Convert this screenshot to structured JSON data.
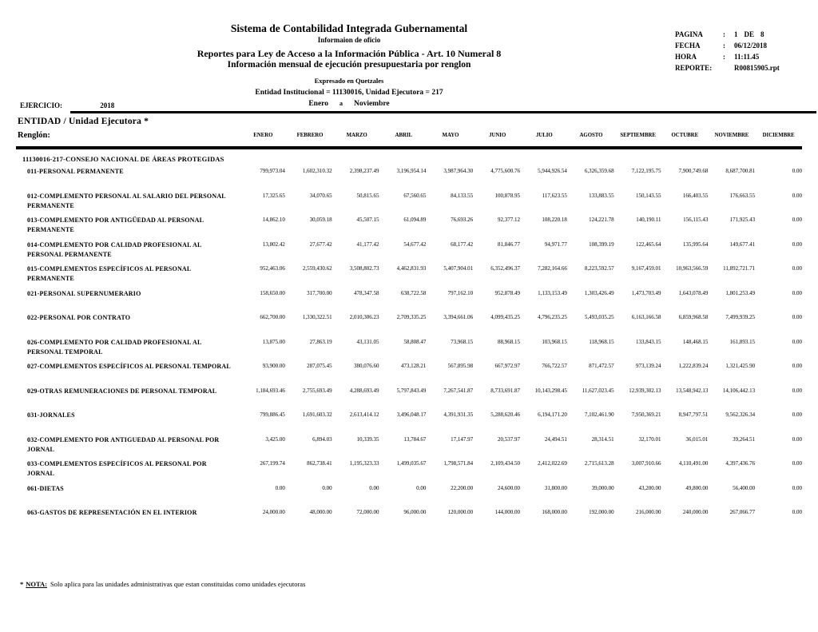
{
  "header": {
    "title": "Sistema de Contabilidad Integrada Gubernamental",
    "subtitle1": "Informaion de oficio",
    "subtitle2": "Reportes para Ley de Acceso a la Información Pública - Art. 10 Numeral 8",
    "subtitle3": "Información mensual de ejecución presupuestaria por renglon",
    "currency_note": "Expresado en Quetzales",
    "entity_line": "Entidad Institucional = 11130016, Unidad Ejecutora = 217",
    "period_from": "Enero",
    "period_sep": "a",
    "period_to": "Noviembre"
  },
  "meta": {
    "pagina_label": "PAGINA",
    "colon": ":",
    "pagina_value": "1",
    "de_label": "DE",
    "pagina_total": "8",
    "fecha_label": "FECHA",
    "fecha_value": "06/12/2018",
    "hora_label": "HORA",
    "hora_value": "11:11.45",
    "reporte_label": "REPORTE:",
    "reporte_value": "R00815905.rpt"
  },
  "filters": {
    "ejercicio_label": "EJERCICIO:",
    "ejercicio_value": "2018",
    "entidad_label": "ENTIDAD  / Unidad Ejecutora *",
    "renglon_label": "Renglón:"
  },
  "table": {
    "months": [
      "ENERO",
      "FEBRERO",
      "MARZO",
      "ABRIL",
      "MAYO",
      "JUNIO",
      "JULIO",
      "AGOSTO",
      "SEPTIEMBRE",
      "OCTUBRE",
      "NOVIEMBRE",
      "DICIEMBRE"
    ],
    "group_title": "11130016-217-CONSEJO NACIONAL DE ÁREAS PROTEGIDAS",
    "rows": [
      {
        "label": "011-PERSONAL PERMANENTE",
        "values": [
          "799,973.04",
          "1,602,310.32",
          "2,398,237.49",
          "3,196,954.14",
          "3,987,964.30",
          "4,775,600.76",
          "5,944,926.54",
          "6,326,359.68",
          "7,122,195.75",
          "7,900,749.68",
          "8,687,700.81",
          "0.00"
        ]
      },
      {
        "label": "012-COMPLEMENTO PERSONAL AL SALARIO DEL PERSONAL PERMANENTE",
        "values": [
          "17,325.65",
          "34,070.65",
          "50,815.65",
          "67,560.65",
          "84,133.55",
          "100,878.95",
          "117,623.55",
          "133,883.55",
          "150,143.55",
          "166,403.55",
          "176,663.55",
          "0.00"
        ]
      },
      {
        "label": "013-COMPLEMENTO POR ANTIGÜEDAD AL PERSONAL PERMANENTE",
        "values": [
          "14,862.10",
          "30,059.18",
          "45,507.15",
          "61,094.89",
          "76,693.26",
          "92,377.12",
          "108,220.18",
          "124,221.78",
          "140,190.11",
          "156,115.43",
          "171,925.43",
          "0.00"
        ]
      },
      {
        "label": "014-COMPLEMENTO POR CALIDAD PROFESIONAL AL PERSONAL PERMANENTE",
        "values": [
          "13,802.42",
          "27,677.42",
          "41,177.42",
          "54,677.42",
          "68,177.42",
          "81,846.77",
          "94,971.77",
          "108,399.19",
          "122,465.64",
          "135,995.64",
          "149,677.41",
          "0.00"
        ]
      },
      {
        "label": "015-COMPLEMENTOS ESPECÍFICOS AL PERSONAL PERMANENTE",
        "values": [
          "952,463.06",
          "2,559,430.62",
          "3,508,802.73",
          "4,462,831.93",
          "5,407,904.01",
          "6,352,496.37",
          "7,282,164.66",
          "8,223,592.57",
          "9,167,459.01",
          "10,963,566.59",
          "11,892,721.71",
          "0.00"
        ]
      },
      {
        "label": "021-PERSONAL SUPERNUMERARIO",
        "values": [
          "158,650.00",
          "317,700.00",
          "478,347.58",
          "638,722.58",
          "797,162.10",
          "952,878.49",
          "1,133,153.49",
          "1,303,426.49",
          "1,473,703.49",
          "1,643,078.49",
          "1,801,253.49",
          "0.00"
        ]
      },
      {
        "label": "022-PERSONAL POR CONTRATO",
        "values": [
          "662,700.00",
          "1,330,322.51",
          "2,010,306.23",
          "2,709,335.25",
          "3,394,661.06",
          "4,099,435.25",
          "4,796,235.25",
          "5,493,035.25",
          "6,163,166.58",
          "6,859,968.58",
          "7,499,939.25",
          "0.00"
        ]
      },
      {
        "label": "026-COMPLEMENTO POR CALIDAD PROFESIONAL AL PERSONAL TEMPORAL",
        "values": [
          "13,875.00",
          "27,863.19",
          "43,131.05",
          "58,808.47",
          "73,968.15",
          "88,968.15",
          "103,968.15",
          "118,968.15",
          "133,843.15",
          "148,468.15",
          "161,893.15",
          "0.00"
        ]
      },
      {
        "label": "027-COMPLEMENTOS ESPECÍFICOS AL PERSONAL TEMPORAL",
        "values": [
          "93,900.00",
          "287,075.45",
          "380,076.60",
          "473,128.21",
          "567,895.98",
          "667,972.97",
          "766,722.57",
          "871,472.57",
          "973,139.24",
          "1,222,839.24",
          "1,321,425.90",
          "0.00"
        ]
      },
      {
        "label": "029-OTRAS REMUNERACIONES DE PERSONAL TEMPORAL",
        "values": [
          "1,184,693.46",
          "2,755,693.49",
          "4,288,693.49",
          "5,797,843.49",
          "7,267,541.87",
          "8,733,691.87",
          "10,143,298.45",
          "11,627,023.45",
          "12,939,302.13",
          "13,548,942.13",
          "14,106,442.13",
          "0.00"
        ]
      },
      {
        "label": "031-JORNALES",
        "values": [
          "799,886.45",
          "1,691,603.32",
          "2,613,414.12",
          "3,496,048.17",
          "4,391,931.35",
          "5,288,620.46",
          "6,194,171.20",
          "7,102,461.90",
          "7,950,369.21",
          "8,947,797.51",
          "9,562,326.34",
          "0.00"
        ]
      },
      {
        "label": "032-COMPLEMENTO POR ANTIGUEDAD AL PERSONAL POR JORNAL",
        "values": [
          "3,425.00",
          "6,894.03",
          "10,339.35",
          "13,784.67",
          "17,147.97",
          "20,537.97",
          "24,494.51",
          "28,314.51",
          "32,170.01",
          "36,015.01",
          "39,264.51",
          "0.00"
        ]
      },
      {
        "label": "033-COMPLEMENTOS ESPECÍFICOS AL PERSONAL POR JORNAL",
        "values": [
          "267,199.74",
          "862,738.41",
          "1,195,323.33",
          "1,499,035.67",
          "1,798,571.84",
          "2,109,434.50",
          "2,412,022.69",
          "2,715,613.28",
          "3,007,910.66",
          "4,110,491.00",
          "4,397,436.76",
          "0.00"
        ]
      },
      {
        "label": "061-DIETAS",
        "values": [
          "0.00",
          "0.00",
          "0.00",
          "0.00",
          "22,200.00",
          "24,600.00",
          "31,800.00",
          "39,000.00",
          "43,200.00",
          "49,800.00",
          "56,400.00",
          "0.00"
        ]
      },
      {
        "label": "063-GASTOS DE REPRESENTACIÓN EN EL INTERIOR",
        "values": [
          "24,000.00",
          "48,000.00",
          "72,000.00",
          "96,000.00",
          "120,000.00",
          "144,000.00",
          "168,000.00",
          "192,000.00",
          "216,000.00",
          "240,000.00",
          "267,066.77",
          "0.00"
        ]
      }
    ]
  },
  "footer": {
    "star": "*",
    "note_label": "NOTA:",
    "note_text": "Solo aplica para las unidades administrativas que estan constituidas como unidades ejecutoras"
  }
}
